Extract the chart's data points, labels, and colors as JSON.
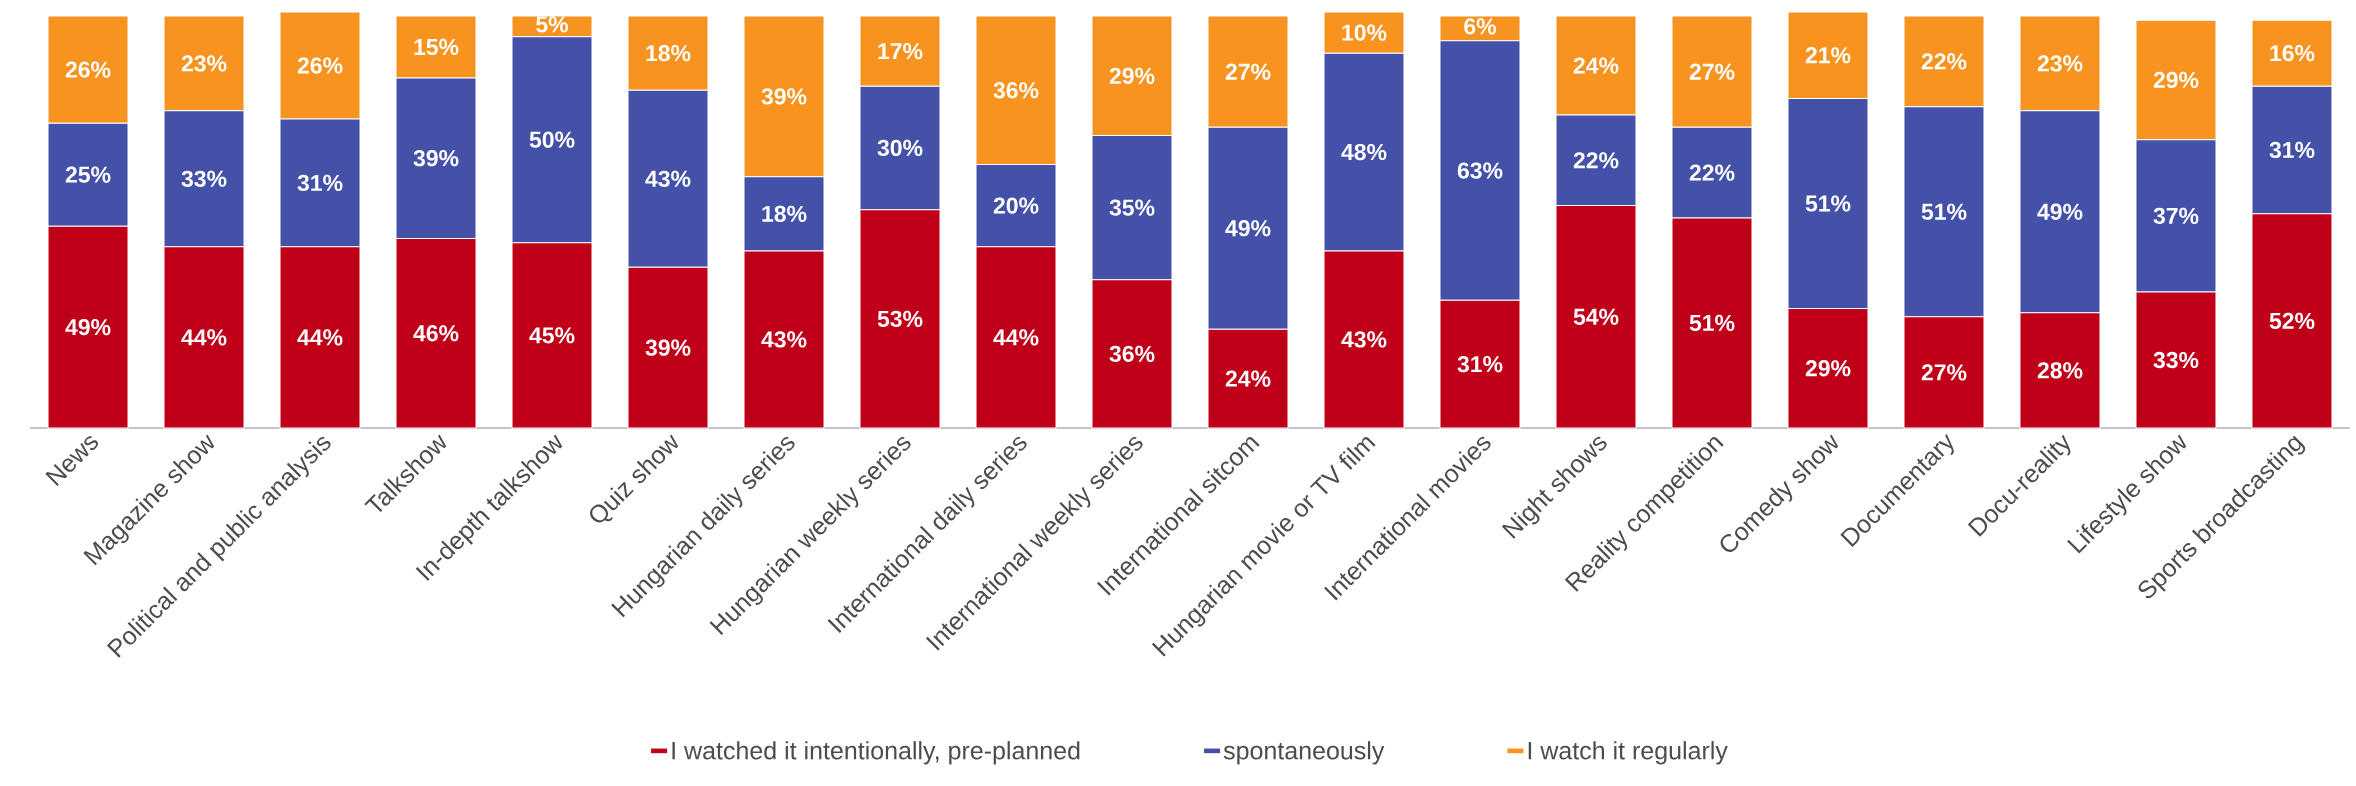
{
  "chart_data": {
    "type": "bar",
    "stacked": true,
    "legend": "bottom",
    "categories": [
      "News",
      "Magazine show",
      "Political and public analysis",
      "Talkshow",
      "In-depth talkshow",
      "Quiz show",
      "Hungarian daily series",
      "Hungarian weekly series",
      "International daily series",
      "International weekly series",
      "International sitcom",
      "Hungarian movie or TV film",
      "International movies",
      "Night shows",
      "Reality competition",
      "Comedy show",
      "Documentary",
      "Docu-reality",
      "Lifestyle show",
      "Sports broadcasting"
    ],
    "series": [
      {
        "name": "I watched it intentionally, pre-planned",
        "color": "#c00018",
        "values": [
          49,
          44,
          44,
          46,
          45,
          39,
          43,
          53,
          44,
          36,
          24,
          43,
          31,
          54,
          51,
          29,
          27,
          28,
          33,
          52
        ],
        "value_labels": [
          "49%",
          "44%",
          "44%",
          "46%",
          "45%",
          "39%",
          "43%",
          "53%",
          "44%",
          "36%",
          "24%",
          "43%",
          "31%",
          "54%",
          "51%",
          "29%",
          "27%",
          "28%",
          "33%",
          "52%"
        ]
      },
      {
        "name": "spontaneously",
        "color": "#4352a8",
        "values": [
          25,
          33,
          31,
          39,
          50,
          43,
          18,
          30,
          20,
          35,
          49,
          48,
          63,
          22,
          22,
          51,
          51,
          49,
          37,
          31
        ],
        "value_labels": [
          "25%",
          "33%",
          "31%",
          "39%",
          "50%",
          "43%",
          "18%",
          "30%",
          "20%",
          "35%",
          "49%",
          "48%",
          "63%",
          "22%",
          "22%",
          "51%",
          "51%",
          "49%",
          "37%",
          "31%"
        ]
      },
      {
        "name": "I watch it regularly",
        "color": "#f7931e",
        "values": [
          26,
          23,
          26,
          15,
          5,
          18,
          39,
          17,
          36,
          29,
          27,
          10,
          6,
          24,
          27,
          21,
          22,
          23,
          29,
          16
        ],
        "value_labels": [
          "26%",
          "23%",
          "26%",
          "15%",
          "5%",
          "18%",
          "39%",
          "17%",
          "36%",
          "29%",
          "27%",
          "10%",
          "6%",
          "24%",
          "27%",
          "21%",
          "22%",
          "23%",
          "29%",
          "16%"
        ]
      }
    ]
  }
}
